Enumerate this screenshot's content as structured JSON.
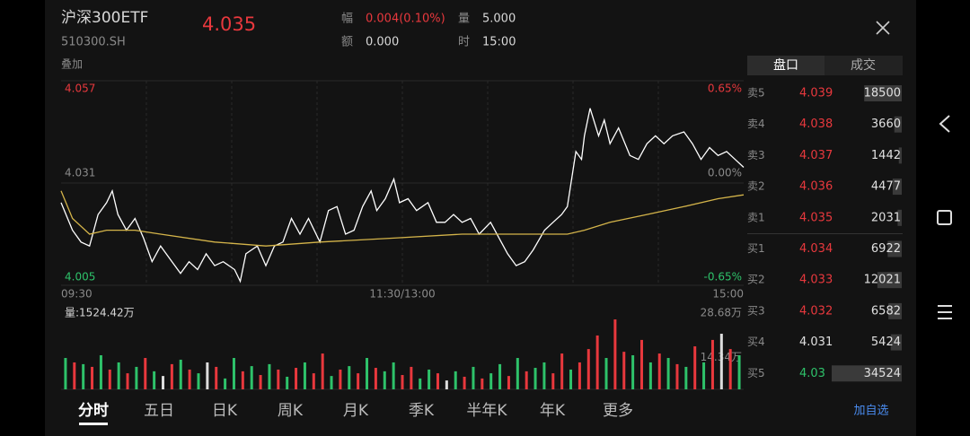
{
  "header": {
    "name": "沪深300ETF",
    "code": "510300.SH",
    "price": "4.035",
    "overlay": "叠加",
    "stats": [
      {
        "label": "幅",
        "value": "0.004(0.10%)"
      },
      {
        "label": "额",
        "value": "0.000"
      },
      {
        "label": "量",
        "value": "5.000"
      },
      {
        "label": "时",
        "value": "15:00"
      }
    ]
  },
  "chart_data": [
    {
      "type": "line",
      "xlim": [
        0,
        240
      ],
      "xticks": [
        {
          "value": 0,
          "label": "09:30"
        },
        {
          "value": 120,
          "label": "11:30/13:00"
        },
        {
          "value": 240,
          "label": "15:00"
        }
      ],
      "ylim": [
        4.005,
        4.057
      ],
      "yticks": [
        4.057,
        4.031,
        4.005
      ],
      "y2lim": [
        -0.65,
        0.65
      ],
      "y2ticks": [
        {
          "value": 0.65,
          "label": "0.65%"
        },
        {
          "value": 0,
          "label": "0.00%"
        },
        {
          "value": -0.65,
          "label": "-0.65%"
        }
      ],
      "series": [
        {
          "color": "#ffffff",
          "x": [
            0,
            4,
            7,
            10,
            13,
            16,
            18,
            20,
            23,
            26,
            29,
            32,
            35,
            39,
            42,
            45,
            48,
            51,
            54,
            57,
            61,
            63,
            65,
            69,
            72,
            75,
            78,
            81,
            84,
            87,
            91,
            94,
            97,
            100,
            103,
            106,
            109,
            111,
            114,
            117,
            119,
            122,
            125,
            129,
            132,
            135,
            138,
            141,
            144,
            147,
            151,
            154,
            157,
            160,
            163,
            166,
            170,
            173,
            176,
            178,
            181,
            183,
            184,
            186,
            189,
            191,
            193,
            196,
            200,
            203,
            206,
            209,
            212,
            215,
            219,
            222,
            225,
            228,
            231,
            234,
            237,
            240
          ],
          "values": [
            4.026,
            4.019,
            4.016,
            4.015,
            4.023,
            4.026,
            4.029,
            4.023,
            4.019,
            4.022,
            4.017,
            4.011,
            4.015,
            4.011,
            4.008,
            4.011,
            4.009,
            4.013,
            4.01,
            4.011,
            4.009,
            4.006,
            4.013,
            4.015,
            4.01,
            4.015,
            4.016,
            4.022,
            4.018,
            4.022,
            4.016,
            4.024,
            4.025,
            4.018,
            4.019,
            4.025,
            4.029,
            4.024,
            4.027,
            4.032,
            4.026,
            4.027,
            4.024,
            4.026,
            4.021,
            4.021,
            4.023,
            4.021,
            4.022,
            4.018,
            4.021,
            4.017,
            4.013,
            4.01,
            4.011,
            4.014,
            4.019,
            4.021,
            4.023,
            4.025,
            4.039,
            4.037,
            4.043,
            4.05,
            4.043,
            4.047,
            4.041,
            4.045,
            4.038,
            4.037,
            4.041,
            4.043,
            4.041,
            4.043,
            4.044,
            4.041,
            4.037,
            4.04,
            4.038,
            4.039,
            4.037,
            4.035
          ]
        },
        {
          "color": "#d4b44a",
          "x": [
            0,
            4,
            10,
            16,
            26,
            35,
            54,
            72,
            91,
            117,
            141,
            166,
            178,
            184,
            193,
            206,
            219,
            231,
            240
          ],
          "values": [
            4.029,
            4.022,
            4.018,
            4.019,
            4.019,
            4.018,
            4.016,
            4.015,
            4.016,
            4.017,
            4.018,
            4.018,
            4.018,
            4.019,
            4.021,
            4.023,
            4.025,
            4.027,
            4.028
          ]
        }
      ]
    },
    {
      "type": "bar",
      "title": "量:1524.42万",
      "ylim": [
        0,
        28.68
      ],
      "yticks": [
        {
          "value": 28.68,
          "label": "28.68万"
        },
        {
          "value": 14.34,
          "label": "14.34万"
        }
      ],
      "values": [
        12.7,
        10.9,
        10.2,
        9.1,
        13.8,
        8.0,
        10.9,
        6.5,
        9.1,
        12.7,
        7.3,
        5.4,
        10.2,
        12.0,
        8.0,
        6.5,
        10.9,
        9.1,
        4.4,
        12.7,
        7.3,
        9.4,
        5.8,
        10.2,
        8.0,
        5.1,
        8.7,
        10.9,
        6.5,
        14.5,
        5.4,
        8.0,
        9.4,
        6.5,
        12.7,
        8.7,
        7.3,
        10.9,
        5.8,
        9.1,
        4.4,
        8.0,
        6.5,
        3.6,
        7.3,
        5.1,
        9.1,
        4.4,
        6.5,
        10.2,
        5.4,
        12.7,
        7.3,
        8.7,
        10.9,
        6.5,
        14.5,
        8.0,
        10.9,
        16.3,
        21.8,
        12.7,
        28.3,
        15.2,
        13.8,
        20.0,
        10.9,
        14.5,
        12.7,
        10.2,
        9.1,
        17.4,
        10.9,
        20.0,
        22.5,
        16.3,
        13.8
      ],
      "colors": [
        "#2ec26a",
        "#e8383d",
        "#2ec26a",
        "#e8383d",
        "#2ec26a",
        "#e8383d",
        "#2ec26a",
        "#e8383d",
        "#2ec26a",
        "#e8383d",
        "#2ec26a",
        "#dddddd",
        "#e8383d",
        "#2ec26a",
        "#e8383d",
        "#2ec26a",
        "#dddddd",
        "#e8383d",
        "#2ec26a",
        "#2ec26a",
        "#e8383d",
        "#2ec26a",
        "#e8383d",
        "#2ec26a",
        "#e8383d",
        "#2ec26a",
        "#e8383d",
        "#2ec26a",
        "#e8383d",
        "#e8383d",
        "#2ec26a",
        "#e8383d",
        "#2ec26a",
        "#e8383d",
        "#2ec26a",
        "#e8383d",
        "#2ec26a",
        "#2ec26a",
        "#e8383d",
        "#e8383d",
        "#2ec26a",
        "#2ec26a",
        "#e8383d",
        "#dddddd",
        "#2ec26a",
        "#e8383d",
        "#2ec26a",
        "#e8383d",
        "#2ec26a",
        "#2ec26a",
        "#e8383d",
        "#2ec26a",
        "#e8383d",
        "#2ec26a",
        "#2ec26a",
        "#e8383d",
        "#e8383d",
        "#2ec26a",
        "#e8383d",
        "#e8383d",
        "#e8383d",
        "#2ec26a",
        "#e8383d",
        "#e8383d",
        "#2ec26a",
        "#e8383d",
        "#2ec26a",
        "#e8383d",
        "#2ec26a",
        "#e8383d",
        "#2ec26a",
        "#e8383d",
        "#2ec26a",
        "#e8383d",
        "#dddddd",
        "#e8383d",
        "#2ec26a"
      ]
    }
  ],
  "order_book": {
    "tabs": [
      "盘口",
      "成交"
    ],
    "rows": [
      {
        "label": "卖5",
        "price": 4.039,
        "volume": 18500
      },
      {
        "label": "卖4",
        "price": 4.038,
        "volume": 3660
      },
      {
        "label": "卖3",
        "price": 4.037,
        "volume": 1442
      },
      {
        "label": "卖2",
        "price": 4.036,
        "volume": 4477
      },
      {
        "label": "卖1",
        "price": 4.035,
        "volume": 2031
      },
      {
        "label": "买1",
        "price": 4.034,
        "volume": 6922
      },
      {
        "label": "买2",
        "price": 4.033,
        "volume": 12021
      },
      {
        "label": "买3",
        "price": 4.032,
        "volume": 6582
      },
      {
        "label": "买4",
        "price": 4.031,
        "volume": 5424
      },
      {
        "label": "买5",
        "price": 4.03,
        "volume": 34524
      }
    ]
  },
  "tabs": [
    "分时",
    "五日",
    "日K",
    "周K",
    "月K",
    "季K",
    "半年K",
    "年K",
    "更多"
  ],
  "add_watch": "加自选"
}
